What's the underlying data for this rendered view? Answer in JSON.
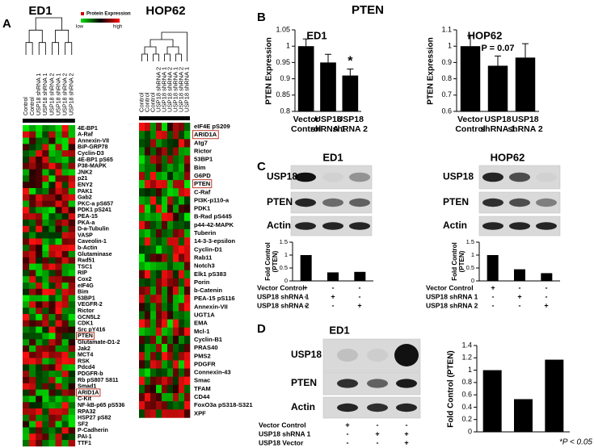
{
  "title": "PTEN",
  "panel_labels": [
    "A",
    "B",
    "C",
    "D"
  ],
  "footnote": "*P < 0.05",
  "heatmap_legend": {
    "title": "Protein Expression",
    "low": "low",
    "high": "high"
  },
  "heatmaps": [
    {
      "title": "ED1",
      "columns": [
        "Control",
        "Control",
        "USP18 shRNA 1",
        "USP18 shRNA 1",
        "USP18 shRNA 2",
        "USP18 shRNA 1",
        "USP18 shRNA 2",
        "USP18 shRNA 2"
      ],
      "rows": [
        "4E-BP1",
        "A-Raf",
        "Annexin-VII",
        "BiP-GRP78",
        "Cyclin-D3",
        "4E-BP1 pS65",
        "P38-MAPK",
        "JNK2",
        "p21",
        "ENY2",
        "PAK1",
        "Gab2",
        "PKC-a pS657",
        "PDK1 pS241",
        "PEA-15",
        "PKA-a",
        "D-a-Tubulin",
        "VASP",
        "Caveolin-1",
        "b-Actin",
        "Glutaminase",
        "Rad51",
        "TSC1",
        "RIP",
        "Cox2",
        "eIF4G",
        "Bim",
        "53BP1",
        "VEGFR-2",
        "Rictor",
        "GCN5L2",
        "CDK1",
        "Src pY416",
        "PTEN",
        "Glutamate-D1-2",
        "Jak2",
        "MCT4",
        "RSK",
        "Pdcd4",
        "PDGFR-b",
        "Rb pS807 S811",
        "Smad1",
        "ARID1A",
        "C-Kit",
        "NF-kB-p65 pS536",
        "RPA32",
        "HSP27 pS82",
        "SF2",
        "P-Cadherin",
        "PAI-1",
        "TTF1"
      ],
      "boxed_rows": [
        33,
        42
      ]
    },
    {
      "title": "HOP62",
      "columns": [
        "Control",
        "Control",
        "Control",
        "USP18 shRNA 2",
        "USP18 shRNA 1",
        "USP18 shRNA 2",
        "USP18 shRNA 1",
        "USP18 shRNA 2",
        "USP18 shRNA 1"
      ],
      "rows": [
        "eIF4E pS209",
        "ARID1A",
        "Atg7",
        "Rictor",
        "53BP1",
        "Bim",
        "G6PD",
        "PTEN",
        "C-Raf",
        "PI3K-p110-a",
        "PDK1",
        "B-Rad pS445",
        "p44-42-MAPK",
        "Tuberin",
        "14-3-3-epsilon",
        "Cyclin-D1",
        "Rab11",
        "Notch3",
        "Elk1 pS383",
        "Porin",
        "b-Catenin",
        "PEA-15 pS116",
        "Annexin-VII",
        "UGT1A",
        "EMA",
        "Mcl-1",
        "Cyclin-B1",
        "PRAS40",
        "PMS2",
        "PDGFR",
        "Connexin-43",
        "Smac",
        "TFAM",
        "CD44",
        "FoxO3a pS318-S321",
        "XPF"
      ],
      "boxed_rows": [
        1,
        7
      ]
    }
  ],
  "chart_data": [
    {
      "type": "bar",
      "title": "ED1",
      "y_label": "PTEN Expression",
      "color": "#000000",
      "categories": [
        "Vector Control",
        "USP18 shRNA 1",
        "USP18 shRNA 2"
      ],
      "values": [
        1.0,
        0.95,
        0.91
      ],
      "errors": [
        0.022,
        0.025,
        0.02
      ],
      "ylim": [
        0.8,
        1.05
      ],
      "yticks": [
        0.8,
        0.85,
        0.9,
        0.95,
        1,
        1.05
      ],
      "annotations": [
        {
          "text": "*",
          "at": 2
        }
      ]
    },
    {
      "type": "bar",
      "title": "HOP62",
      "y_label": "PTEN Expression",
      "color": "#000000",
      "categories": [
        "Vector Control",
        "USP18 shRNA 1",
        "USP18 shRNA 2"
      ],
      "values": [
        1.0,
        0.88,
        0.93
      ],
      "errors": [
        0.065,
        0.06,
        0.085
      ],
      "ylim": [
        0.6,
        1.1
      ],
      "yticks": [
        0.6,
        0.7,
        0.8,
        0.9,
        1,
        1.1
      ],
      "annotations": [
        {
          "text": "P = 0.07",
          "at": 1
        }
      ]
    },
    {
      "type": "bar",
      "y_label": "Fold Control (PTEN)",
      "color": "#000000",
      "values": [
        1.0,
        0.33,
        0.35
      ],
      "ylim": [
        0,
        1.5
      ],
      "yticks": [
        0,
        0.5,
        1,
        1.5
      ]
    },
    {
      "type": "bar",
      "y_label": "Fold Control (PTEN)",
      "color": "#000000",
      "values": [
        1.0,
        0.45,
        0.3
      ],
      "ylim": [
        0,
        1.5
      ],
      "yticks": [
        0,
        0.5,
        1,
        1.5
      ]
    },
    {
      "type": "bar",
      "y_label": "Fold Control (PTEN)",
      "color": "#000000",
      "values": [
        1.0,
        0.53,
        1.17
      ],
      "ylim": [
        0,
        1.4
      ],
      "yticks": [
        0,
        0.2,
        0.4,
        0.6,
        0.8,
        1,
        1.2,
        1.4
      ]
    }
  ],
  "blots": [
    {
      "title": "ED1",
      "rows": [
        "USP18",
        "PTEN",
        "Actin"
      ],
      "conditions": [
        {
          "label": "Vector Control",
          "signs": [
            "+",
            "-",
            "-"
          ]
        },
        {
          "label": "USP18 shRNA 1",
          "signs": [
            "-",
            "+",
            "-"
          ]
        },
        {
          "label": "USP18 shRNA 2",
          "signs": [
            "-",
            "-",
            "+"
          ]
        }
      ]
    },
    {
      "title": "HOP62",
      "rows": [
        "USP18",
        "PTEN",
        "Actin"
      ],
      "conditions": [
        {
          "label": "Vector Control",
          "signs": [
            "+",
            "-",
            "-"
          ]
        },
        {
          "label": "USP18 shRNA 1",
          "signs": [
            "-",
            "+",
            "-"
          ]
        },
        {
          "label": "USP18 shRNA 2",
          "signs": [
            "-",
            "-",
            "+"
          ]
        }
      ]
    },
    {
      "title": "ED1",
      "rows": [
        "USP18",
        "PTEN",
        "Actin"
      ],
      "conditions": [
        {
          "label": "Vector Control",
          "signs": [
            "+",
            "-",
            "-"
          ]
        },
        {
          "label": "USP18 shRNA 1",
          "signs": [
            "-",
            "+",
            "+"
          ]
        },
        {
          "label": "USP18 Vector",
          "signs": [
            "-",
            "-",
            "+"
          ]
        }
      ]
    }
  ]
}
